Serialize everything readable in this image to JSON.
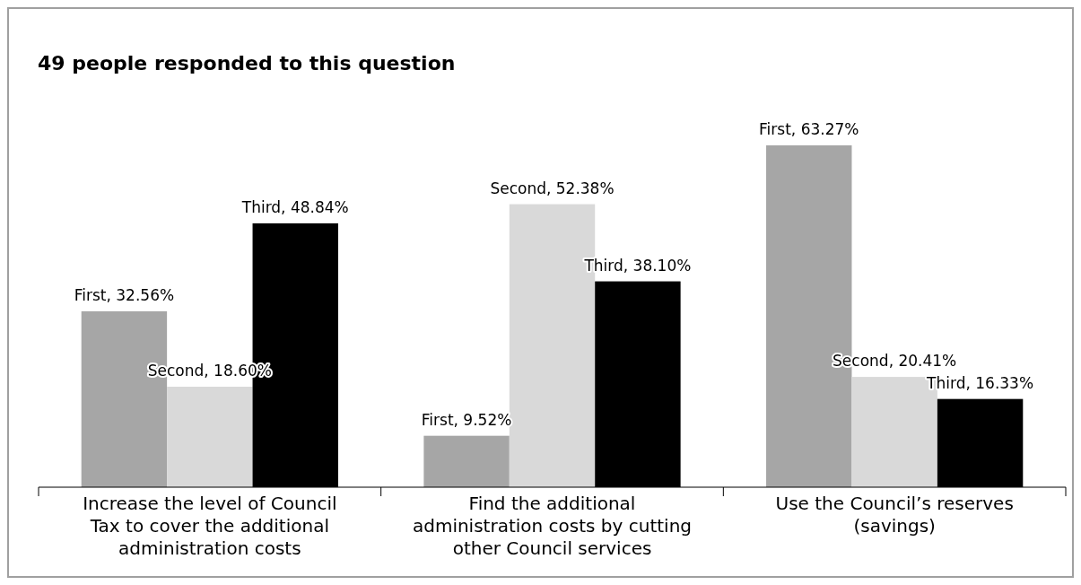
{
  "chart_data": {
    "type": "bar",
    "title": "49 people responded to this question",
    "categories": [
      "Increase the level of Council Tax to cover the additional administration costs",
      "Find the additional administration costs by cutting other Council services",
      "Use the Council’s reserves (savings)"
    ],
    "series": [
      {
        "color": "#a6a6a6",
        "values": [
          32.56,
          9.52,
          63.27
        ],
        "value_labels": [
          "First, 32.56%",
          "First, 9.52%",
          "First, 63.27%"
        ]
      },
      {
        "color": "#d9d9d9",
        "values": [
          18.6,
          52.38,
          20.41
        ],
        "value_labels": [
          "Second, 18.60%",
          "Second, 52.38%",
          "Second, 20.41%"
        ]
      },
      {
        "color": "#000000",
        "values": [
          48.84,
          38.1,
          16.33
        ],
        "value_labels": [
          "Third, 48.84%",
          "Third, 38.10%",
          "Third, 16.33%"
        ]
      }
    ]
  }
}
